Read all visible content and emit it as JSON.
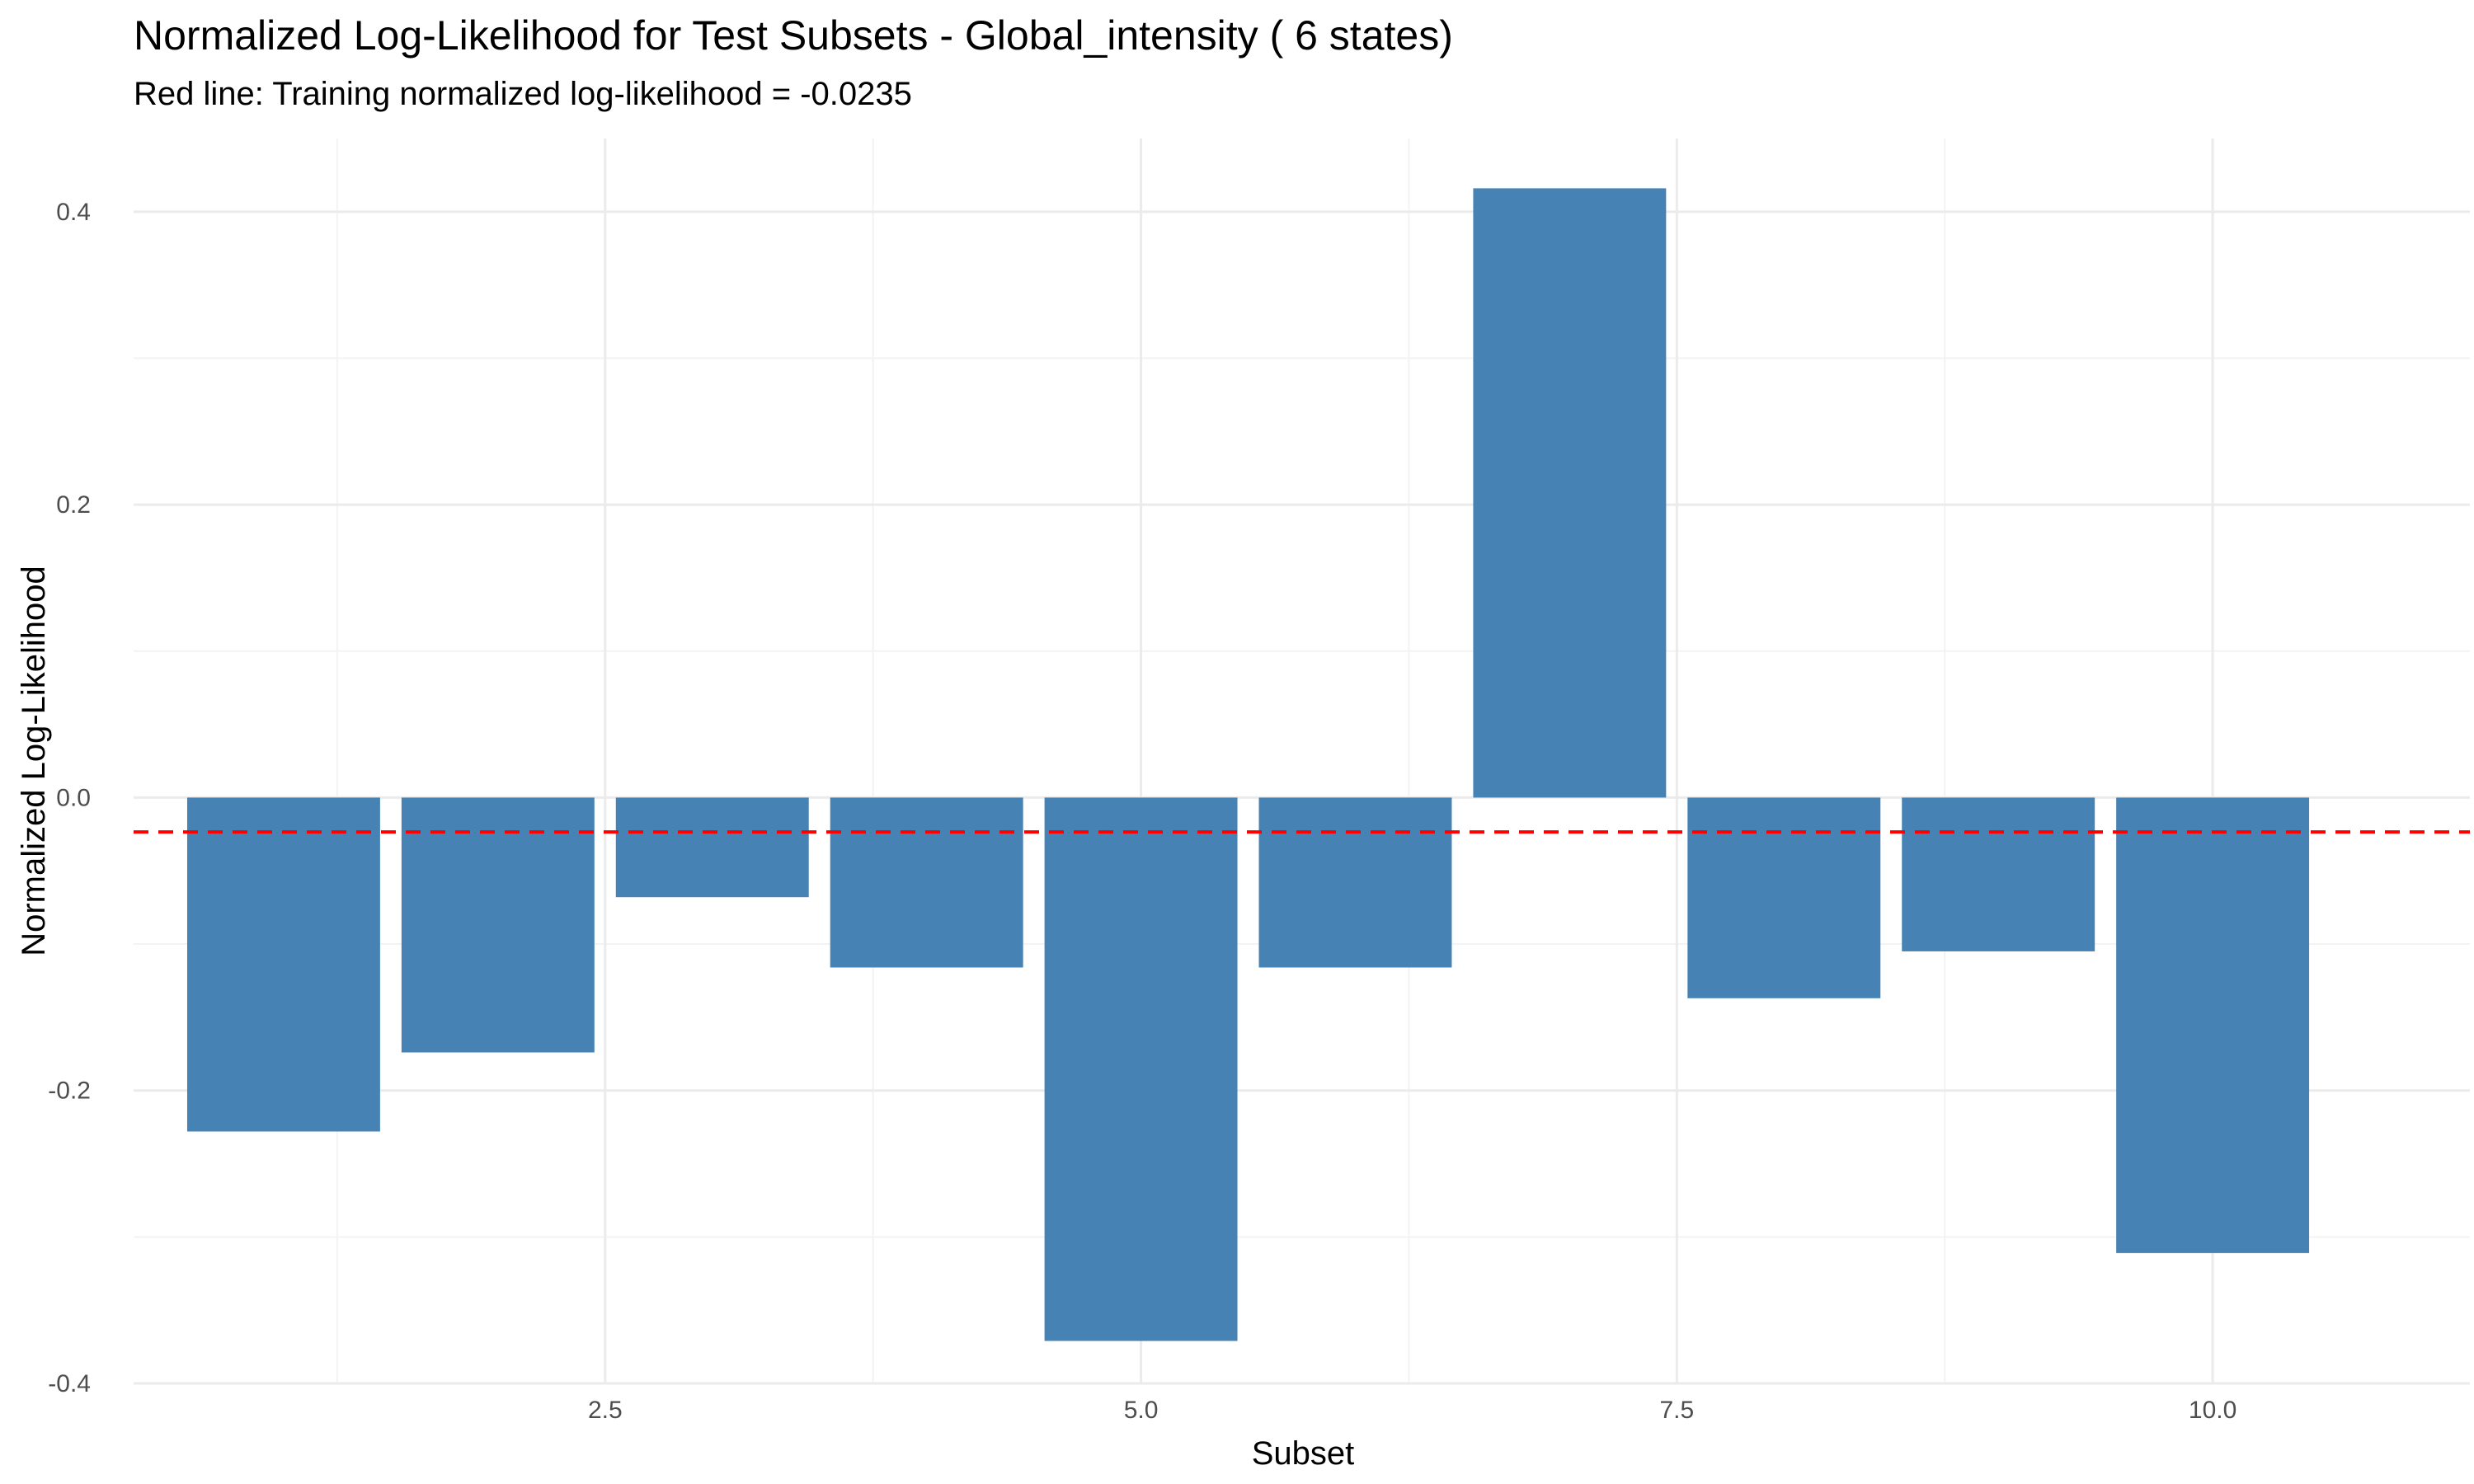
{
  "chart_data": {
    "type": "bar",
    "title": "Normalized Log-Likelihood for Test Subsets - Global_intensity ( 6 states)",
    "subtitle": "Red line: Training normalized log-likelihood = -0.0235",
    "xlabel": "Subset",
    "ylabel": "Normalized Log-Likelihood",
    "x": [
      1,
      2,
      3,
      4,
      5,
      6,
      7,
      8,
      9,
      10
    ],
    "values": [
      -0.228,
      -0.174,
      -0.068,
      -0.116,
      -0.371,
      -0.116,
      0.416,
      -0.137,
      -0.105,
      -0.311
    ],
    "xlim": [
      0.3,
      11.2
    ],
    "ylim": [
      -0.4,
      0.45
    ],
    "x_ticks": [
      2.5,
      5.0,
      7.5,
      10.0
    ],
    "x_tick_labels": [
      "2.5",
      "5.0",
      "7.5",
      "10.0"
    ],
    "y_ticks": [
      -0.4,
      -0.2,
      0.0,
      0.2,
      0.4
    ],
    "y_tick_labels": [
      "-0.4",
      "-0.2",
      "0.0",
      "0.2",
      "0.4"
    ],
    "reference_line": {
      "y": -0.0235,
      "color": "#ff0000",
      "style": "dashed"
    },
    "bar_color": "#4682b4",
    "grid": true,
    "legend": "none"
  }
}
